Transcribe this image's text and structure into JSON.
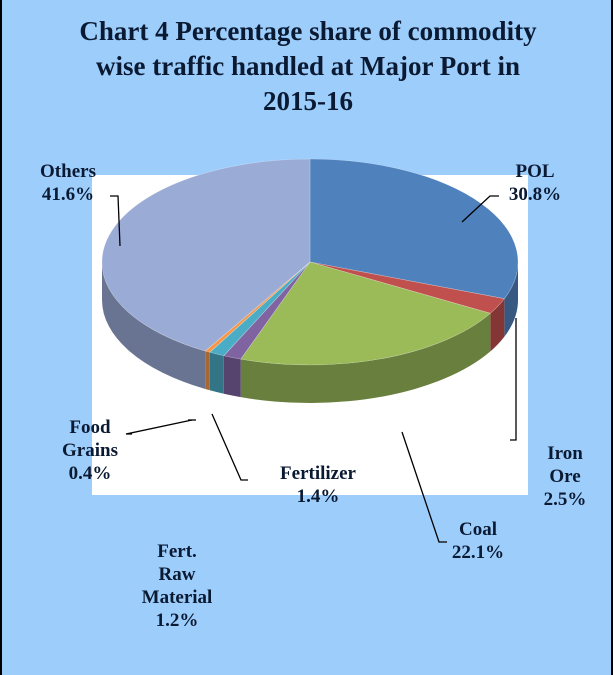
{
  "chart_data": {
    "type": "pie",
    "title": "Chart 4 Percentage share of commodity wise traffic handled at Major Port in 2015-16",
    "categories": [
      "POL",
      "Iron Ore",
      "Coal",
      "Fertilizer",
      "Fert. Raw Material",
      "Food Grains",
      "Others"
    ],
    "values": [
      30.8,
      2.5,
      22.1,
      1.4,
      1.2,
      0.4,
      41.6
    ],
    "value_labels": [
      "30.8%",
      "2.5%",
      "22.1%",
      "1.4%",
      "1.2%",
      "0.4%",
      "41.6%"
    ],
    "colors": [
      "#4f81bd",
      "#c0504d",
      "#9bbb59",
      "#8064a2",
      "#4bacc6",
      "#f79646",
      "#9aabd6"
    ],
    "three_d": true
  }
}
